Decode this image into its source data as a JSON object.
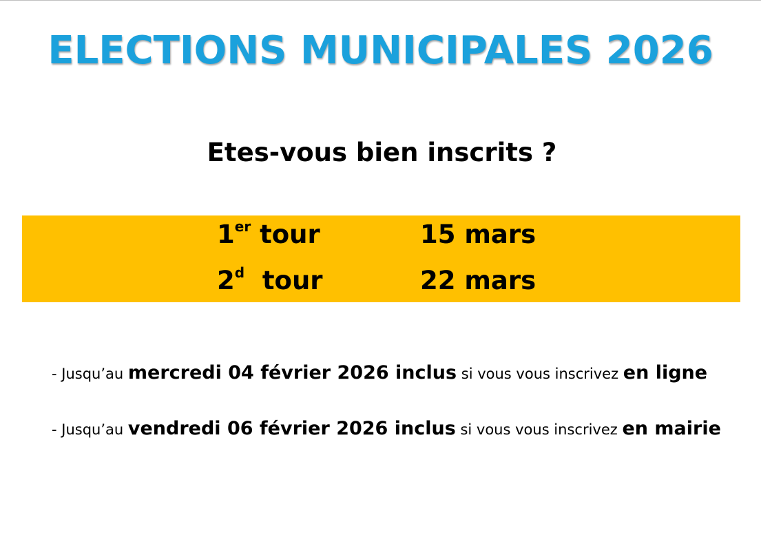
{
  "title": "ELECTIONS MUNICIPALES 2026",
  "subtitle": "Etes-vous bien inscrits ?",
  "colors": {
    "title": "#1ba1dc",
    "band": "#ffc000",
    "text": "#000000"
  },
  "rounds": [
    {
      "number": "1",
      "suffix": "er",
      "label": "tour",
      "date": "15 mars"
    },
    {
      "number": "2",
      "suffix": "d",
      "label": "tour",
      "date": "22 mars"
    }
  ],
  "deadlines": [
    {
      "prefix": "- Jusqu’au",
      "deadline": "mercredi 04 février 2026 inclus",
      "middle": "si vous vous inscrivez",
      "mode": "en ligne"
    },
    {
      "prefix": "- Jusqu’au",
      "deadline": "vendredi 06 février 2026 inclus",
      "middle": "si vous vous inscrivez",
      "mode": "en mairie"
    }
  ]
}
